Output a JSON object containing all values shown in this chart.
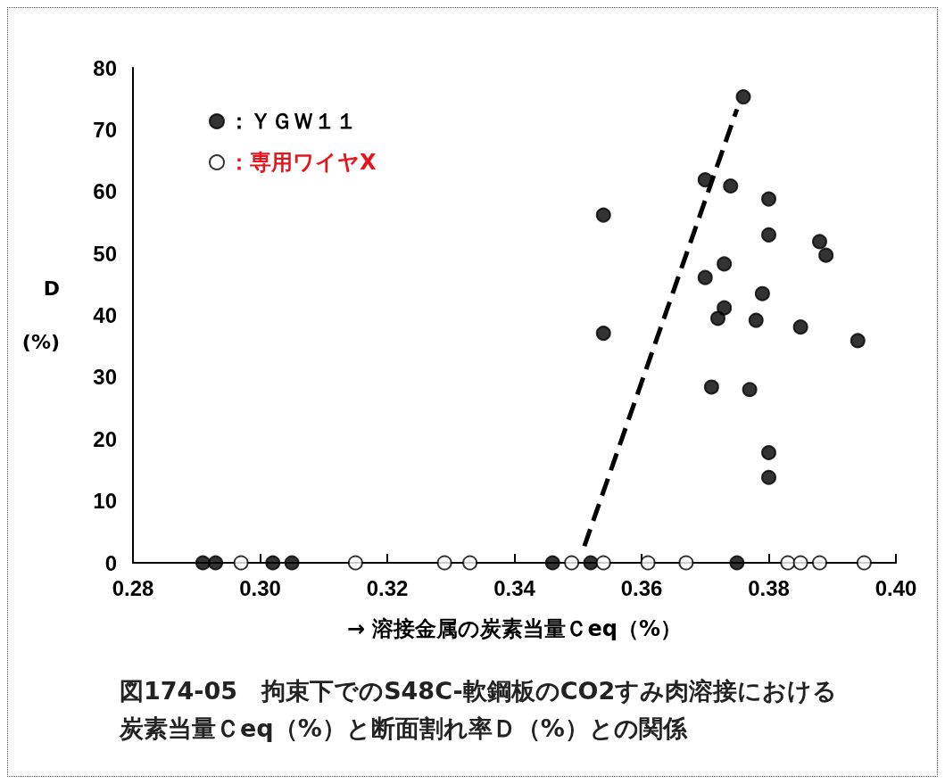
{
  "chart_data": {
    "type": "scatter",
    "title": "図174-05　拘束下でのS48C-軟鋼板のCO2すみ肉溶接における炭素当量Ｃeq（%）と断面割れ率Ｄ（%）との関係",
    "xlabel": "→ 溶接金属の炭素当量Ｃeq（%）",
    "ylabel": "D\n(%)",
    "xlim": [
      0.28,
      0.4
    ],
    "xticks": [
      {
        "value": 0.28,
        "label": "0.28"
      },
      {
        "value": 0.3,
        "label": "0.30"
      },
      {
        "value": 0.32,
        "label": "0.32"
      },
      {
        "value": 0.34,
        "label": "0.34"
      },
      {
        "value": 0.36,
        "label": "0.36"
      },
      {
        "value": 0.38,
        "label": "0.38"
      },
      {
        "value": 0.4,
        "label": "0.40"
      }
    ],
    "ylim": [
      0,
      80
    ],
    "yticks": [
      0,
      10,
      20,
      30,
      40,
      50,
      60,
      70,
      80
    ],
    "grid": false,
    "legend": "top left",
    "marker": "circle",
    "series": [
      {
        "name": "：ＹＧＷ１１",
        "color": "#000000",
        "x": [
          0.291,
          0.293,
          0.302,
          0.305,
          0.346,
          0.352,
          0.375,
          0.376,
          0.37,
          0.374,
          0.38,
          0.354,
          0.38,
          0.388,
          0.389,
          0.373,
          0.37,
          0.379,
          0.373,
          0.372,
          0.378,
          0.385,
          0.354,
          0.394,
          0.371,
          0.377,
          0.38,
          0.38
        ],
        "values": [
          0,
          0,
          0,
          0,
          0,
          0,
          0,
          75.3,
          61.9,
          60.9,
          58.8,
          56.2,
          53.0,
          51.9,
          49.7,
          48.3,
          46.1,
          43.5,
          41.2,
          39.5,
          39.2,
          38.1,
          37.1,
          35.9,
          28.4,
          28.0,
          17.8,
          13.8
        ]
      },
      {
        "name": "：専用ワイヤX",
        "color": "#ffffff",
        "x": [
          0.297,
          0.315,
          0.329,
          0.333,
          0.349,
          0.354,
          0.361,
          0.367,
          0.383,
          0.385,
          0.388,
          0.395
        ],
        "values": [
          0,
          0,
          0,
          0,
          0,
          0,
          0,
          0,
          0,
          0,
          0,
          0
        ]
      },
      {
        "type": "line",
        "color": "#000000",
        "line_style": "dashed",
        "marker": "none",
        "x": [
          0.351,
          0.375
        ],
        "values": [
          2.7,
          73.3
        ]
      }
    ]
  }
}
